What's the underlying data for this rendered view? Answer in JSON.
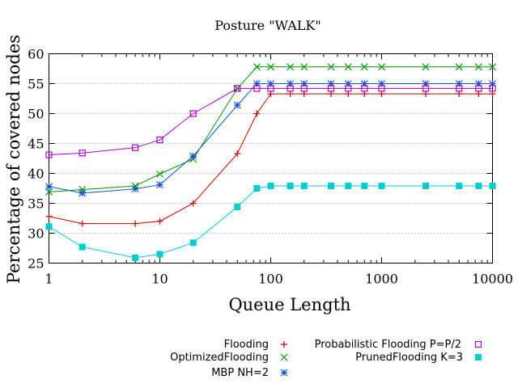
{
  "chart_data": {
    "type": "line",
    "title": "Posture \"WALK\"",
    "xlabel": "Queue Length",
    "ylabel": "Percentage of covered nodes",
    "xscale": "log",
    "xlim": [
      1,
      10000
    ],
    "ylim": [
      25,
      60
    ],
    "xticks": [
      1,
      10,
      100,
      1000,
      10000
    ],
    "xtick_labels": [
      "1",
      "10",
      "100",
      "1000",
      "10000"
    ],
    "yticks": [
      25,
      30,
      35,
      40,
      45,
      50,
      55,
      60
    ],
    "ytick_labels": [
      "25",
      "30",
      "35",
      "40",
      "45",
      "50",
      "55",
      "60"
    ],
    "grid": "horizontal-dotted",
    "legend_position": "bottom",
    "x": [
      1,
      2,
      6,
      10,
      20,
      50,
      75,
      100,
      150,
      200,
      350,
      500,
      700,
      1000,
      2500,
      5000,
      7500,
      10000
    ],
    "series": [
      {
        "name": "Flooding",
        "color": "#cc0000",
        "marker": "plus",
        "values": [
          32.8,
          31.6,
          31.6,
          32.0,
          35.0,
          43.3,
          50.0,
          53.3,
          53.3,
          53.3,
          53.3,
          53.3,
          53.3,
          53.3,
          53.3,
          53.3,
          53.3,
          53.3
        ]
      },
      {
        "name": "OptimizedFlooding",
        "color": "#009900",
        "marker": "x",
        "values": [
          36.9,
          37.3,
          37.9,
          39.9,
          42.4,
          54.2,
          57.8,
          57.8,
          57.8,
          57.8,
          57.8,
          57.8,
          57.8,
          57.8,
          57.8,
          57.8,
          57.8,
          57.8
        ]
      },
      {
        "name": "MBP NH=2",
        "color": "#1155cc",
        "marker": "star",
        "values": [
          37.8,
          36.7,
          37.4,
          38.1,
          42.9,
          51.4,
          55.0,
          55.0,
          55.0,
          55.0,
          55.0,
          55.0,
          55.0,
          55.0,
          55.0,
          55.0,
          55.0,
          55.0
        ]
      },
      {
        "name": "Probabilistic Flooding P=P/2",
        "color": "#aa00cc",
        "marker": "open-square",
        "values": [
          43.1,
          43.4,
          44.3,
          45.6,
          50.0,
          54.2,
          54.2,
          54.2,
          54.2,
          54.2,
          54.2,
          54.2,
          54.2,
          54.2,
          54.2,
          54.2,
          54.2,
          54.2
        ]
      },
      {
        "name": "PrunedFlooding K=3",
        "color": "#00cccc",
        "marker": "filled-square",
        "values": [
          31.1,
          27.7,
          25.9,
          26.5,
          28.4,
          34.4,
          37.5,
          37.9,
          37.9,
          37.9,
          37.9,
          37.9,
          37.9,
          37.9,
          37.9,
          37.9,
          37.9,
          37.9
        ]
      }
    ]
  }
}
